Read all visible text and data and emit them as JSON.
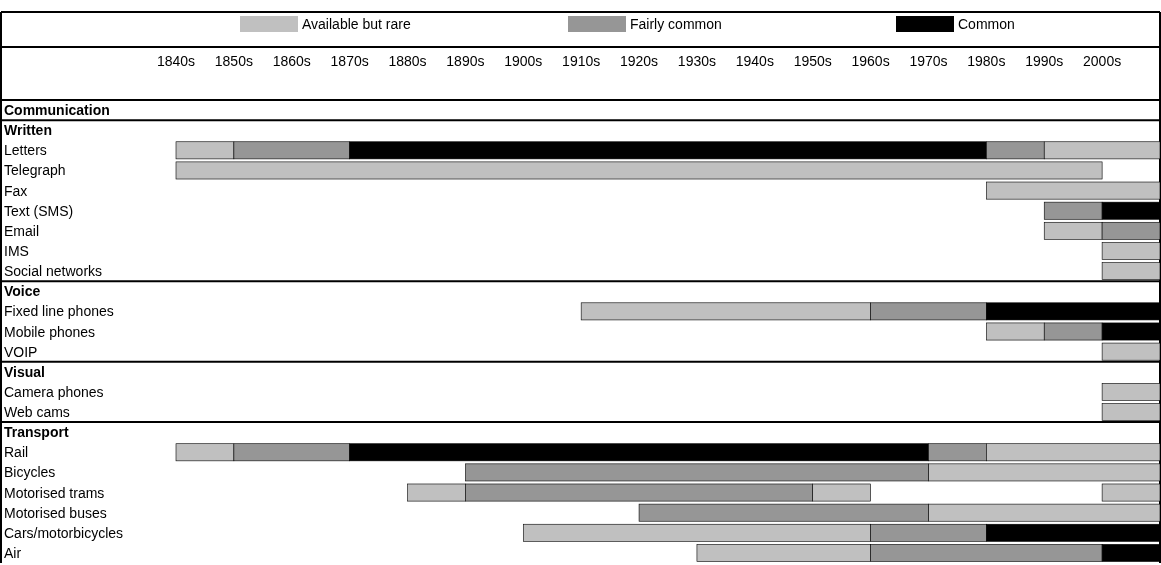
{
  "chart_data": {
    "type": "bar",
    "orientation": "horizontal",
    "categories": [
      "Communication",
      "Written",
      "Letters",
      "Telegraph",
      "Fax",
      "Text (SMS)",
      "Email",
      "IMS",
      "Social networks",
      "Voice",
      "Fixed line phones",
      "Mobile phones",
      "VOIP",
      "Visual",
      "Camera phones",
      "Web cams",
      "Transport",
      "Rail",
      "Bicycles",
      "Motorised trams",
      "Motorised buses",
      "Cars/motorbicycles",
      "Air"
    ],
    "xlim": [
      1840,
      2010
    ],
    "xticks": [
      {
        "value": 1840,
        "label": "1840s"
      },
      {
        "value": 1850,
        "label": "1850s"
      },
      {
        "value": 1860,
        "label": "1860s"
      },
      {
        "value": 1870,
        "label": "1870s"
      },
      {
        "value": 1880,
        "label": "1880s"
      },
      {
        "value": 1890,
        "label": "1890s"
      },
      {
        "value": 1900,
        "label": "1900s"
      },
      {
        "value": 1910,
        "label": "1910s"
      },
      {
        "value": 1920,
        "label": "1920s"
      },
      {
        "value": 1930,
        "label": "1930s"
      },
      {
        "value": 1940,
        "label": "1940s"
      },
      {
        "value": 1950,
        "label": "1950s"
      },
      {
        "value": 1960,
        "label": "1960s"
      },
      {
        "value": 1970,
        "label": "1970s"
      },
      {
        "value": 1980,
        "label": "1980s"
      },
      {
        "value": 1990,
        "label": "1990s"
      },
      {
        "value": 2000,
        "label": "2000s"
      }
    ],
    "legend": "top",
    "grid": "y",
    "series": [
      {
        "name": "Available but rare",
        "color": "#c0c0c0",
        "base": [
          null,
          null,
          1840,
          1840,
          1980,
          null,
          1990,
          2000,
          2000,
          null,
          1910,
          1980,
          2000,
          null,
          2000,
          2000,
          null,
          1840,
          1970,
          1880,
          1970,
          1900,
          1930
        ],
        "values": [
          null,
          null,
          10,
          160,
          30,
          null,
          10,
          10,
          10,
          null,
          50,
          10,
          10,
          null,
          10,
          10,
          null,
          10,
          40,
          10,
          40,
          60,
          30
        ]
      },
      {
        "name": "Fairly common",
        "color": "#969696",
        "base": [
          null,
          null,
          1850,
          null,
          null,
          1990,
          2000,
          null,
          null,
          null,
          1960,
          1990,
          null,
          null,
          null,
          null,
          null,
          1850,
          1890,
          1890,
          1920,
          1960,
          1960
        ],
        "values": [
          null,
          null,
          20,
          null,
          null,
          10,
          10,
          null,
          null,
          null,
          20,
          10,
          null,
          null,
          null,
          null,
          null,
          20,
          80,
          60,
          50,
          20,
          40
        ]
      },
      {
        "name": "Common",
        "color": "#000000",
        "base": [
          null,
          null,
          1870,
          null,
          null,
          2000,
          null,
          null,
          null,
          null,
          1980,
          2000,
          null,
          null,
          null,
          null,
          null,
          1870,
          null,
          null,
          null,
          1980,
          2000
        ],
        "values": [
          null,
          null,
          110,
          null,
          null,
          10,
          null,
          null,
          null,
          null,
          30,
          10,
          null,
          null,
          null,
          null,
          null,
          100,
          null,
          null,
          null,
          30,
          10
        ]
      },
      {
        "color": "#969696",
        "base": [
          null,
          null,
          1980,
          null,
          null,
          null,
          null,
          null,
          null,
          null,
          null,
          null,
          null,
          null,
          null,
          null,
          null,
          1970,
          null,
          null,
          null,
          null,
          null
        ],
        "values": [
          null,
          null,
          10,
          null,
          null,
          null,
          null,
          null,
          null,
          null,
          null,
          null,
          null,
          null,
          null,
          null,
          null,
          10,
          null,
          null,
          null,
          null,
          null
        ]
      },
      {
        "color": "#c0c0c0",
        "base": [
          null,
          null,
          1990,
          null,
          null,
          null,
          null,
          null,
          null,
          null,
          null,
          null,
          null,
          null,
          null,
          null,
          null,
          1980,
          null,
          1950,
          null,
          null,
          null
        ],
        "values": [
          null,
          null,
          20,
          null,
          null,
          null,
          null,
          null,
          null,
          null,
          null,
          null,
          null,
          null,
          null,
          null,
          null,
          30,
          null,
          10,
          null,
          null,
          null
        ]
      },
      {
        "color": "#c0c0c0",
        "base": [
          null,
          null,
          null,
          null,
          null,
          null,
          null,
          null,
          null,
          null,
          null,
          null,
          null,
          null,
          null,
          null,
          null,
          null,
          null,
          2000,
          null,
          null,
          null
        ],
        "values": [
          null,
          null,
          null,
          null,
          null,
          null,
          null,
          null,
          null,
          null,
          null,
          null,
          null,
          null,
          null,
          null,
          null,
          null,
          null,
          10,
          null,
          null,
          null
        ]
      }
    ]
  }
}
